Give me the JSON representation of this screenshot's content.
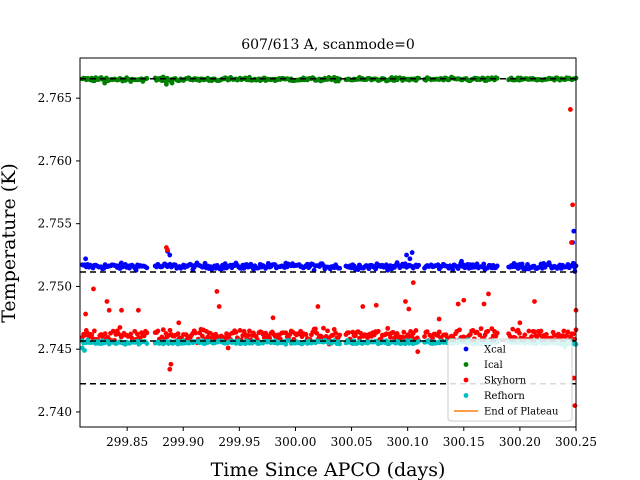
{
  "chart_data": {
    "type": "scatter",
    "title": "607/613 A, scanmode=0",
    "xlabel": "Time Since APCO (days)",
    "ylabel": "Temperature (K)",
    "xlim": [
      299.808,
      300.25
    ],
    "ylim": [
      2.7388,
      2.7682
    ],
    "x_ticks": [
      299.85,
      299.9,
      299.95,
      300.0,
      300.05,
      300.1,
      300.15,
      300.2,
      300.25
    ],
    "x_tick_labels": [
      "299.85",
      "299.90",
      "299.95",
      "300.00",
      "300.05",
      "300.10",
      "300.15",
      "300.20",
      "300.25"
    ],
    "y_ticks": [
      2.74,
      2.745,
      2.75,
      2.755,
      2.76,
      2.765
    ],
    "y_tick_labels": [
      "2.740",
      "2.745",
      "2.750",
      "2.755",
      "2.760",
      "2.765"
    ],
    "grid": false,
    "legend_position": "lower-right",
    "segments": [
      [
        299.81,
        299.868
      ],
      [
        299.875,
        300.04
      ],
      [
        300.045,
        300.11
      ],
      [
        300.115,
        300.18
      ],
      [
        300.19,
        300.25
      ]
    ],
    "series": [
      {
        "name": "Xcal",
        "color": "#0000ff",
        "base": 2.7516,
        "noise": 0.00012,
        "outliers": [
          [
            299.813,
            2.7522
          ],
          [
            299.886,
            2.7528
          ],
          [
            299.888,
            2.7525
          ],
          [
            300.099,
            2.7525
          ],
          [
            300.102,
            2.7522
          ],
          [
            300.104,
            2.7527
          ],
          [
            300.148,
            2.752
          ],
          [
            300.247,
            2.7535
          ],
          [
            300.248,
            2.7544
          ],
          [
            300.249,
            2.7512
          ]
        ]
      },
      {
        "name": "Ical",
        "color": "#008000",
        "base": 2.7665,
        "noise": 7e-05,
        "outliers": [
          [
            299.83,
            2.7662
          ],
          [
            299.885,
            2.7661
          ],
          [
            299.89,
            2.7662
          ]
        ]
      },
      {
        "name": "Skyhorn",
        "color": "#ff0000",
        "base": 2.7461,
        "noise": 0.00025,
        "outliers": [
          [
            299.813,
            2.7478
          ],
          [
            299.82,
            2.7498
          ],
          [
            299.832,
            2.7488
          ],
          [
            299.834,
            2.7481
          ],
          [
            299.845,
            2.7481
          ],
          [
            299.86,
            2.7481
          ],
          [
            299.885,
            2.7531
          ],
          [
            299.886,
            2.7529
          ],
          [
            299.888,
            2.7434
          ],
          [
            299.889,
            2.7438
          ],
          [
            299.896,
            2.7471
          ],
          [
            299.905,
            2.7456
          ],
          [
            299.93,
            2.7496
          ],
          [
            299.932,
            2.7484
          ],
          [
            299.94,
            2.7451
          ],
          [
            299.98,
            2.7475
          ],
          [
            300.02,
            2.7484
          ],
          [
            300.03,
            2.7454
          ],
          [
            300.06,
            2.7484
          ],
          [
            300.072,
            2.7485
          ],
          [
            300.098,
            2.7488
          ],
          [
            300.101,
            2.7482
          ],
          [
            300.105,
            2.7503
          ],
          [
            300.109,
            2.7448
          ],
          [
            300.128,
            2.7474
          ],
          [
            300.145,
            2.7486
          ],
          [
            300.15,
            2.7489
          ],
          [
            300.168,
            2.7486
          ],
          [
            300.172,
            2.7494
          ],
          [
            300.2,
            2.7471
          ],
          [
            300.213,
            2.7488
          ],
          [
            300.235,
            2.7459
          ],
          [
            300.245,
            2.7641
          ],
          [
            300.246,
            2.7535
          ],
          [
            300.247,
            2.7565
          ],
          [
            300.248,
            2.7427
          ],
          [
            300.249,
            2.7405
          ],
          [
            300.25,
            2.7481
          ]
        ]
      },
      {
        "name": "Refhorn",
        "color": "#00bfbf",
        "base": 2.74555,
        "noise": 8e-05,
        "outliers": [
          [
            299.81,
            2.7451
          ],
          [
            299.812,
            2.7449
          ],
          [
            300.24,
            2.7452
          ]
        ]
      }
    ],
    "dashed_lines": [
      2.76655,
      2.75115,
      2.74565,
      2.74225
    ],
    "dashed_line_color": "#000000",
    "legend": [
      {
        "label": "Xcal",
        "color": "#0000ff",
        "marker": "dot"
      },
      {
        "label": "Ical",
        "color": "#008000",
        "marker": "dot"
      },
      {
        "label": "Skyhorn",
        "color": "#ff0000",
        "marker": "dot"
      },
      {
        "label": "Refhorn",
        "color": "#00bfbf",
        "marker": "dot"
      },
      {
        "label": "End of Plateau",
        "color": "#ff7f0e",
        "marker": "line"
      }
    ]
  }
}
